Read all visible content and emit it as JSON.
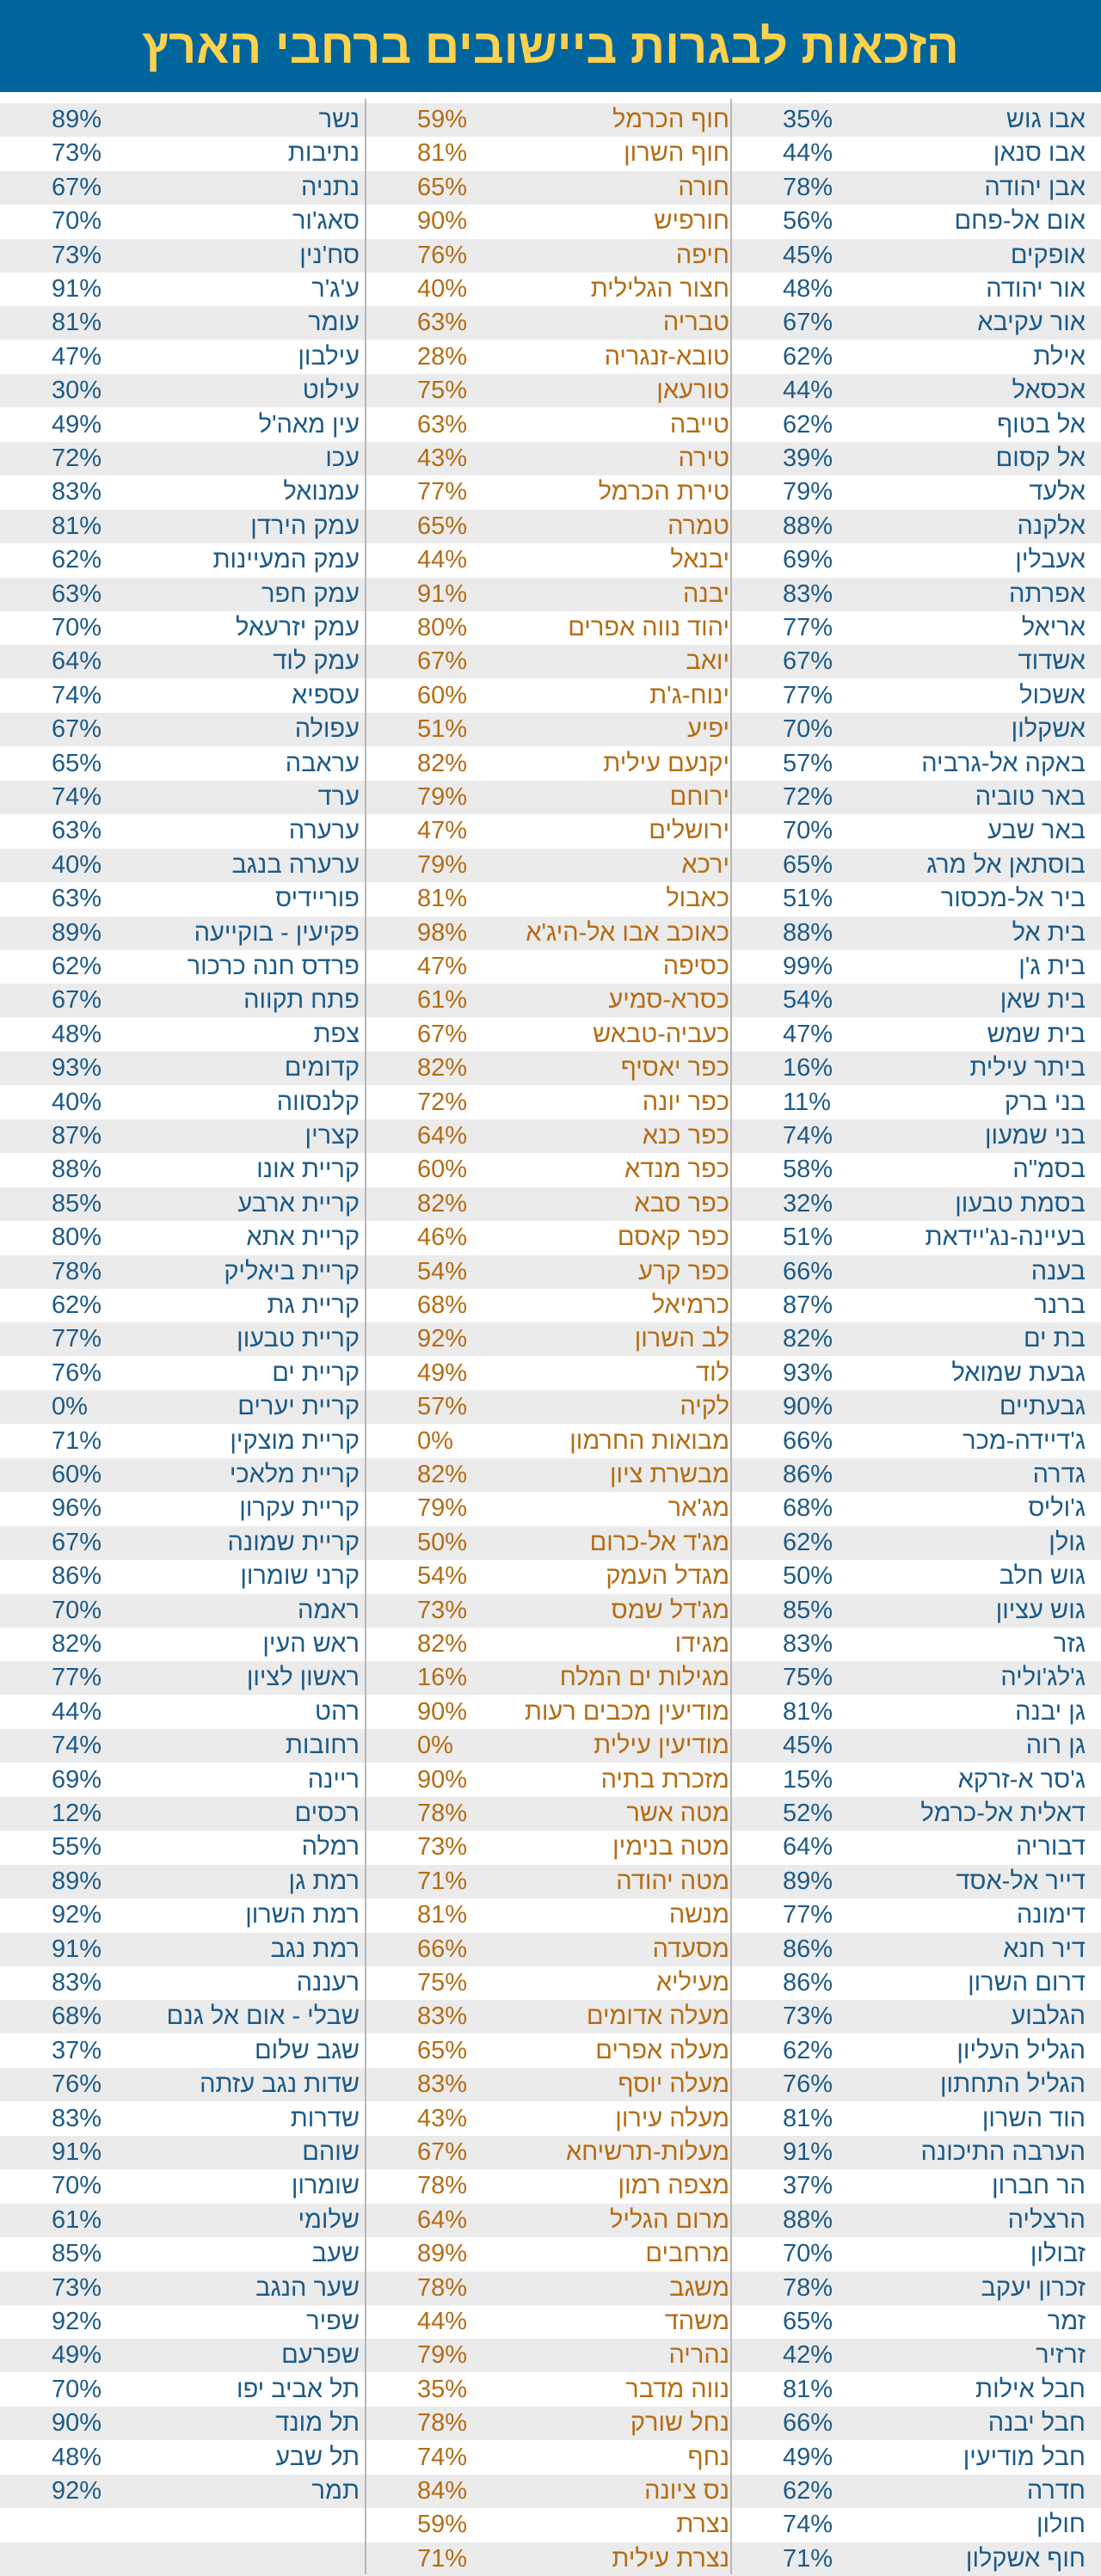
{
  "chart_data": {
    "type": "table",
    "title": "הזכאות לבגרות ביישובים ברחבי הארץ",
    "colors": {
      "header_bg": "#00649d",
      "title": "#ffd24e",
      "column_1": "#1d5a87",
      "column_2": "#b56c14",
      "column_3": "#1d5a87",
      "stripe": "#ebebeb"
    },
    "columns": [
      [
        {
          "name": "אבו גוש",
          "value": "35%"
        },
        {
          "name": "אבו סנאן",
          "value": "44%"
        },
        {
          "name": "אבן יהודה",
          "value": "78%"
        },
        {
          "name": "אום אל-פחם",
          "value": "56%"
        },
        {
          "name": "אופקים",
          "value": "45%"
        },
        {
          "name": "אור יהודה",
          "value": "48%"
        },
        {
          "name": "אור עקיבא",
          "value": "67%"
        },
        {
          "name": "אילת",
          "value": "62%"
        },
        {
          "name": "אכסאל",
          "value": "44%"
        },
        {
          "name": "אל בטוף",
          "value": "62%"
        },
        {
          "name": "אל קסום",
          "value": "39%"
        },
        {
          "name": "אלעד",
          "value": "79%"
        },
        {
          "name": "אלקנה",
          "value": "88%"
        },
        {
          "name": "אעבלין",
          "value": "69%"
        },
        {
          "name": "אפרתה",
          "value": "83%"
        },
        {
          "name": "אריאל",
          "value": "77%"
        },
        {
          "name": "אשדוד",
          "value": "67%"
        },
        {
          "name": "אשכול",
          "value": "77%"
        },
        {
          "name": "אשקלון",
          "value": "70%"
        },
        {
          "name": "באקה אל-גרביה",
          "value": "57%"
        },
        {
          "name": "באר טוביה",
          "value": "72%"
        },
        {
          "name": "באר שבע",
          "value": "70%"
        },
        {
          "name": "בוסתאן אל מרג",
          "value": "65%"
        },
        {
          "name": "ביר אל-מכסור",
          "value": "51%"
        },
        {
          "name": "בית אל",
          "value": "88%"
        },
        {
          "name": "בית ג'ן",
          "value": "99%"
        },
        {
          "name": "בית שאן",
          "value": "54%"
        },
        {
          "name": "בית שמש",
          "value": "47%"
        },
        {
          "name": "ביתר עילית",
          "value": "16%"
        },
        {
          "name": "בני ברק",
          "value": "11%"
        },
        {
          "name": "בני שמעון",
          "value": "74%"
        },
        {
          "name": "בסמ\"ה",
          "value": "58%"
        },
        {
          "name": "בסמת טבעון",
          "value": "32%"
        },
        {
          "name": "בעיינה-נג'יידאת",
          "value": "51%"
        },
        {
          "name": "בענה",
          "value": "66%"
        },
        {
          "name": "ברנר",
          "value": "87%"
        },
        {
          "name": "בת ים",
          "value": "82%"
        },
        {
          "name": "גבעת שמואל",
          "value": "93%"
        },
        {
          "name": "גבעתיים",
          "value": "90%"
        },
        {
          "name": "ג'דיידה-מכר",
          "value": "66%"
        },
        {
          "name": "גדרה",
          "value": "86%"
        },
        {
          "name": "ג'וליס",
          "value": "68%"
        },
        {
          "name": "גולן",
          "value": "62%"
        },
        {
          "name": "גוש חלב",
          "value": "50%"
        },
        {
          "name": "גוש עציון",
          "value": "85%"
        },
        {
          "name": "גזר",
          "value": "83%"
        },
        {
          "name": "ג'לג'וליה",
          "value": "75%"
        },
        {
          "name": "גן יבנה",
          "value": "81%"
        },
        {
          "name": "גן רוה",
          "value": "45%"
        },
        {
          "name": "ג'סר א-זרקא",
          "value": "15%"
        },
        {
          "name": "דאלית אל-כרמל",
          "value": "52%"
        },
        {
          "name": "דבוריה",
          "value": "64%"
        },
        {
          "name": "דייר אל-אסד",
          "value": "89%"
        },
        {
          "name": "דימונה",
          "value": "77%"
        },
        {
          "name": "דיר חנא",
          "value": "86%"
        },
        {
          "name": "דרום השרון",
          "value": "86%"
        },
        {
          "name": "הגלבוע",
          "value": "73%"
        },
        {
          "name": "הגליל העליון",
          "value": "62%"
        },
        {
          "name": "הגליל התחתון",
          "value": "76%"
        },
        {
          "name": "הוד השרון",
          "value": "81%"
        },
        {
          "name": "הערבה התיכונה",
          "value": "91%"
        },
        {
          "name": "הר חברון",
          "value": "37%"
        },
        {
          "name": "הרצליה",
          "value": "88%"
        },
        {
          "name": "זבולון",
          "value": "70%"
        },
        {
          "name": "זכרון יעקב",
          "value": "78%"
        },
        {
          "name": "זמר",
          "value": "65%"
        },
        {
          "name": "זרזיר",
          "value": "42%"
        },
        {
          "name": "חבל אילות",
          "value": "81%"
        },
        {
          "name": "חבל יבנה",
          "value": "66%"
        },
        {
          "name": "חבל מודיעין",
          "value": "49%"
        },
        {
          "name": "חדרה",
          "value": "62%"
        },
        {
          "name": "חולון",
          "value": "74%"
        },
        {
          "name": "חוף אשקלון",
          "value": "71%"
        }
      ],
      [
        {
          "name": "חוף הכרמל",
          "value": "59%"
        },
        {
          "name": "חוף השרון",
          "value": "81%"
        },
        {
          "name": "חורה",
          "value": "65%"
        },
        {
          "name": "חורפיש",
          "value": "90%"
        },
        {
          "name": "חיפה",
          "value": "76%"
        },
        {
          "name": "חצור הגלילית",
          "value": "40%"
        },
        {
          "name": "טבריה",
          "value": "63%"
        },
        {
          "name": "טובא-זנגריה",
          "value": "28%"
        },
        {
          "name": "טורעאן",
          "value": "75%"
        },
        {
          "name": "טייבה",
          "value": "63%"
        },
        {
          "name": "טירה",
          "value": "43%"
        },
        {
          "name": "טירת הכרמל",
          "value": "77%"
        },
        {
          "name": "טמרה",
          "value": "65%"
        },
        {
          "name": "יבנאל",
          "value": "44%"
        },
        {
          "name": "יבנה",
          "value": "91%"
        },
        {
          "name": "יהוד נווה אפרים",
          "value": "80%"
        },
        {
          "name": "יואב",
          "value": "67%"
        },
        {
          "name": "ינוח-ג'ת",
          "value": "60%"
        },
        {
          "name": "יפיע",
          "value": "51%"
        },
        {
          "name": "יקנעם עילית",
          "value": "82%"
        },
        {
          "name": "ירוחם",
          "value": "79%"
        },
        {
          "name": "ירושלים",
          "value": "47%"
        },
        {
          "name": "ירכא",
          "value": "79%"
        },
        {
          "name": "כאבול",
          "value": "81%"
        },
        {
          "name": "כאוכב אבו אל-היג'א",
          "value": "98%"
        },
        {
          "name": "כסיפה",
          "value": "47%"
        },
        {
          "name": "כסרא-סמיע",
          "value": "61%"
        },
        {
          "name": "כעביה-טבאש",
          "value": "67%"
        },
        {
          "name": "כפר יאסיף",
          "value": "82%"
        },
        {
          "name": "כפר יונה",
          "value": "72%"
        },
        {
          "name": "כפר כנא",
          "value": "64%"
        },
        {
          "name": "כפר מנדא",
          "value": "60%"
        },
        {
          "name": "כפר סבא",
          "value": "82%"
        },
        {
          "name": "כפר קאסם",
          "value": "46%"
        },
        {
          "name": "כפר קרע",
          "value": "54%"
        },
        {
          "name": "כרמיאל",
          "value": "68%"
        },
        {
          "name": "לב השרון",
          "value": "92%"
        },
        {
          "name": "לוד",
          "value": "49%"
        },
        {
          "name": "לקיה",
          "value": "57%"
        },
        {
          "name": "מבואות החרמון",
          "value": "0%"
        },
        {
          "name": "מבשרת ציון",
          "value": "82%"
        },
        {
          "name": "מג'אר",
          "value": "79%"
        },
        {
          "name": "מג'ד אל-כרום",
          "value": "50%"
        },
        {
          "name": "מגדל העמק",
          "value": "54%"
        },
        {
          "name": "מג'דל שמס",
          "value": "73%"
        },
        {
          "name": "מגידו",
          "value": "82%"
        },
        {
          "name": "מגילות ים המלח",
          "value": "16%"
        },
        {
          "name": "מודיעין מכבים רעות",
          "value": "90%"
        },
        {
          "name": "מודיעין עילית",
          "value": "0%"
        },
        {
          "name": "מזכרת בתיה",
          "value": "90%"
        },
        {
          "name": "מטה אשר",
          "value": "78%"
        },
        {
          "name": "מטה בנימין",
          "value": "73%"
        },
        {
          "name": "מטה יהודה",
          "value": "71%"
        },
        {
          "name": "מנשה",
          "value": "81%"
        },
        {
          "name": "מסעדה",
          "value": "66%"
        },
        {
          "name": "מעיליא",
          "value": "75%"
        },
        {
          "name": "מעלה אדומים",
          "value": "83%"
        },
        {
          "name": "מעלה אפרים",
          "value": "65%"
        },
        {
          "name": "מעלה יוסף",
          "value": "83%"
        },
        {
          "name": "מעלה עירון",
          "value": "43%"
        },
        {
          "name": "מעלות-תרשיחא",
          "value": "67%"
        },
        {
          "name": "מצפה רמון",
          "value": "78%"
        },
        {
          "name": "מרום הגליל",
          "value": "64%"
        },
        {
          "name": "מרחבים",
          "value": "89%"
        },
        {
          "name": "משגב",
          "value": "78%"
        },
        {
          "name": "משהד",
          "value": "44%"
        },
        {
          "name": "נהריה",
          "value": "79%"
        },
        {
          "name": "נווה מדבר",
          "value": "35%"
        },
        {
          "name": "נחל שורק",
          "value": "78%"
        },
        {
          "name": "נחף",
          "value": "74%"
        },
        {
          "name": "נס ציונה",
          "value": "84%"
        },
        {
          "name": "נצרת",
          "value": "59%"
        },
        {
          "name": "נצרת עילית",
          "value": "71%"
        }
      ],
      [
        {
          "name": "נשר",
          "value": "89%"
        },
        {
          "name": "נתיבות",
          "value": "73%"
        },
        {
          "name": "נתניה",
          "value": "67%"
        },
        {
          "name": "סאג'ור",
          "value": "70%"
        },
        {
          "name": "סח'נין",
          "value": "73%"
        },
        {
          "name": "ע'ג'ר",
          "value": "91%"
        },
        {
          "name": "עומר",
          "value": "81%"
        },
        {
          "name": "עילבון",
          "value": "47%"
        },
        {
          "name": "עילוט",
          "value": "30%"
        },
        {
          "name": "עין מאה'ל",
          "value": "49%"
        },
        {
          "name": "עכו",
          "value": "72%"
        },
        {
          "name": "עמנואל",
          "value": "83%"
        },
        {
          "name": "עמק הירדן",
          "value": "81%"
        },
        {
          "name": "עמק המעיינות",
          "value": "62%"
        },
        {
          "name": "עמק חפר",
          "value": "63%"
        },
        {
          "name": "עמק יזרעאל",
          "value": "70%"
        },
        {
          "name": "עמק לוד",
          "value": "64%"
        },
        {
          "name": "עספיא",
          "value": "74%"
        },
        {
          "name": "עפולה",
          "value": "67%"
        },
        {
          "name": "עראבה",
          "value": "65%"
        },
        {
          "name": "ערד",
          "value": "74%"
        },
        {
          "name": "ערערה",
          "value": "63%"
        },
        {
          "name": "ערערה בנגב",
          "value": "40%"
        },
        {
          "name": "פוריידיס",
          "value": "63%"
        },
        {
          "name": "פקיעין - בוקייעה",
          "value": "89%"
        },
        {
          "name": "פרדס חנה כרכור",
          "value": "62%"
        },
        {
          "name": "פתח תקווה",
          "value": "67%"
        },
        {
          "name": "צפת",
          "value": "48%"
        },
        {
          "name": "קדומים",
          "value": "93%"
        },
        {
          "name": "קלנסווה",
          "value": "40%"
        },
        {
          "name": "קצרין",
          "value": "87%"
        },
        {
          "name": "קריית אונו",
          "value": "88%"
        },
        {
          "name": "קריית ארבע",
          "value": "85%"
        },
        {
          "name": "קריית אתא",
          "value": "80%"
        },
        {
          "name": "קריית ביאליק",
          "value": "78%"
        },
        {
          "name": "קריית גת",
          "value": "62%"
        },
        {
          "name": "קריית טבעון",
          "value": "77%"
        },
        {
          "name": "קריית ים",
          "value": "76%"
        },
        {
          "name": "קריית יערים",
          "value": "0%"
        },
        {
          "name": "קריית מוצקין",
          "value": "71%"
        },
        {
          "name": "קריית מלאכי",
          "value": "60%"
        },
        {
          "name": "קריית עקרון",
          "value": "96%"
        },
        {
          "name": "קריית שמונה",
          "value": "67%"
        },
        {
          "name": "קרני שומרון",
          "value": "86%"
        },
        {
          "name": "ראמה",
          "value": "70%"
        },
        {
          "name": "ראש העין",
          "value": "82%"
        },
        {
          "name": "ראשון לציון",
          "value": "77%"
        },
        {
          "name": "רהט",
          "value": "44%"
        },
        {
          "name": "רחובות",
          "value": "74%"
        },
        {
          "name": "ריינה",
          "value": "69%"
        },
        {
          "name": "רכסים",
          "value": "12%"
        },
        {
          "name": "רמלה",
          "value": "55%"
        },
        {
          "name": "רמת גן",
          "value": "89%"
        },
        {
          "name": "רמת השרון",
          "value": "92%"
        },
        {
          "name": "רמת נגב",
          "value": "91%"
        },
        {
          "name": "רעננה",
          "value": "83%"
        },
        {
          "name": "שבלי - אום אל גנם",
          "value": "68%"
        },
        {
          "name": "שגב שלום",
          "value": "37%"
        },
        {
          "name": "שדות נגב עזתה",
          "value": "76%"
        },
        {
          "name": "שדרות",
          "value": "83%"
        },
        {
          "name": "שוהם",
          "value": "91%"
        },
        {
          "name": "שומרון",
          "value": "70%"
        },
        {
          "name": "שלומי",
          "value": "61%"
        },
        {
          "name": "שעב",
          "value": "85%"
        },
        {
          "name": "שער הנגב",
          "value": "73%"
        },
        {
          "name": "שפיר",
          "value": "92%"
        },
        {
          "name": "שפרעם",
          "value": "49%"
        },
        {
          "name": "תל אביב יפו",
          "value": "70%"
        },
        {
          "name": "תל מונד",
          "value": "90%"
        },
        {
          "name": "תל שבע",
          "value": "48%"
        },
        {
          "name": "תמר",
          "value": "92%"
        }
      ]
    ]
  }
}
